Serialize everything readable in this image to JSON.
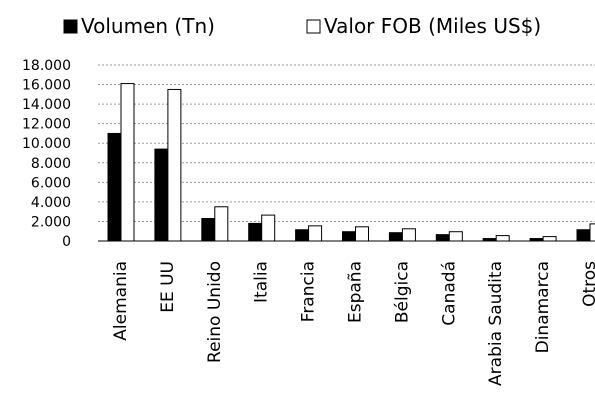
{
  "chart_data": {
    "type": "bar",
    "title": "",
    "xlabel": "",
    "ylabel": "",
    "categories": [
      "Alemania",
      "EE UU",
      "Reino Unido",
      "Italia",
      "Francia",
      "España",
      "Bélgica",
      "Canadá",
      "Arabia Saudita",
      "Dinamarca",
      "Otros"
    ],
    "series": [
      {
        "name": "Volumen (Tn)",
        "values": [
          11000,
          9400,
          2300,
          1800,
          1150,
          950,
          850,
          650,
          250,
          250,
          1150
        ],
        "color": "#000000"
      },
      {
        "name": "Valor FOB (Miles US$)",
        "values": [
          16100,
          15500,
          3500,
          2650,
          1550,
          1450,
          1250,
          950,
          550,
          450,
          1750
        ],
        "color": "#ffffff"
      }
    ],
    "ylim": [
      0,
      18000
    ],
    "yticks": [
      0,
      2000,
      4000,
      6000,
      8000,
      10000,
      12000,
      14000,
      16000,
      18000
    ],
    "ytick_labels": [
      "0",
      "2.000",
      "4.000",
      "6.000",
      "8.000",
      "10.000",
      "12.000",
      "14.000",
      "16.000",
      "18.000"
    ],
    "grid": true,
    "legend_position": "top"
  }
}
